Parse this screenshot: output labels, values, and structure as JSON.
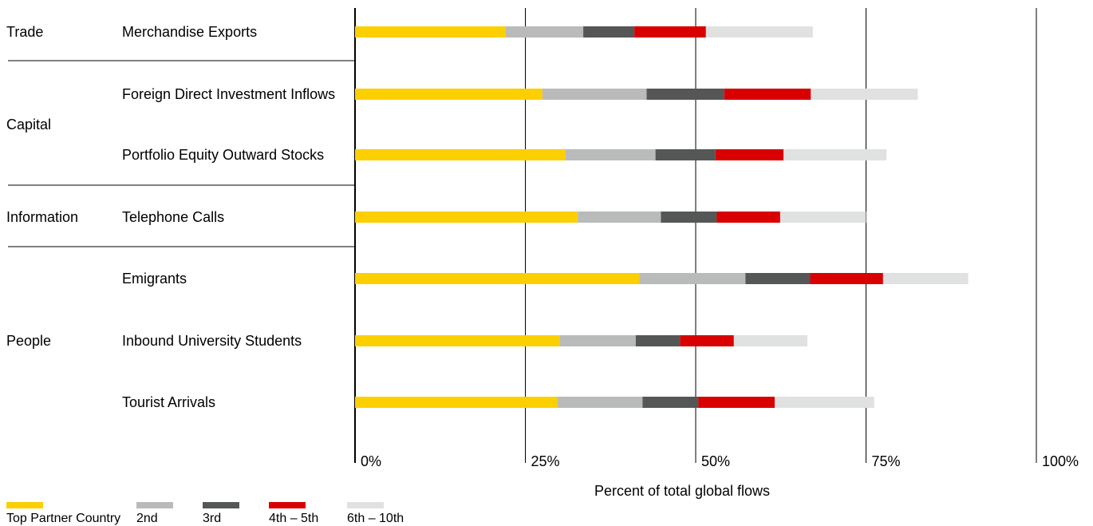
{
  "chart_data": {
    "type": "bar",
    "stacked": true,
    "orientation": "horizontal",
    "xlabel": "Percent of total global flows",
    "xlim": [
      0,
      100
    ],
    "xticks": [
      "0%",
      "25%",
      "50%",
      "75%",
      "100%"
    ],
    "grid": true,
    "legend_position": "bottom-left",
    "groups": [
      {
        "name": "Trade",
        "rows": [
          "Merchandise Exports"
        ]
      },
      {
        "name": "Capital",
        "rows": [
          "Foreign Direct Investment Inflows",
          "Portfolio Equity Outward Stocks"
        ]
      },
      {
        "name": "Information",
        "rows": [
          "Telephone Calls"
        ]
      },
      {
        "name": "People",
        "rows": [
          "Emigrants",
          "Inbound University Students",
          "Tourist Arrivals"
        ]
      }
    ],
    "categories": [
      "Merchandise Exports",
      "Foreign Direct Investment Inflows",
      "Portfolio Equity Outward Stocks",
      "Telephone Calls",
      "Emigrants",
      "Inbound University Students",
      "Tourist Arrivals"
    ],
    "series": [
      {
        "name": "Top Partner Country",
        "color": "#fccf00",
        "values": [
          22.1,
          27.5,
          30.9,
          32.7,
          41.7,
          30.0,
          29.7
        ]
      },
      {
        "name": "2nd",
        "color": "#b9baba",
        "values": [
          11.4,
          15.3,
          13.2,
          12.2,
          15.6,
          11.2,
          12.5
        ]
      },
      {
        "name": "3rd",
        "color": "#555656",
        "values": [
          7.5,
          11.4,
          8.8,
          8.2,
          9.5,
          6.5,
          8.2
        ]
      },
      {
        "name": "4th – 5th",
        "color": "#d90000",
        "values": [
          10.5,
          12.7,
          10.0,
          9.3,
          10.7,
          7.9,
          11.2
        ]
      },
      {
        "name": "6th – 10th",
        "color": "#e0e1e1",
        "values": [
          15.7,
          15.7,
          15.1,
          12.6,
          12.5,
          10.8,
          14.6
        ]
      }
    ]
  }
}
